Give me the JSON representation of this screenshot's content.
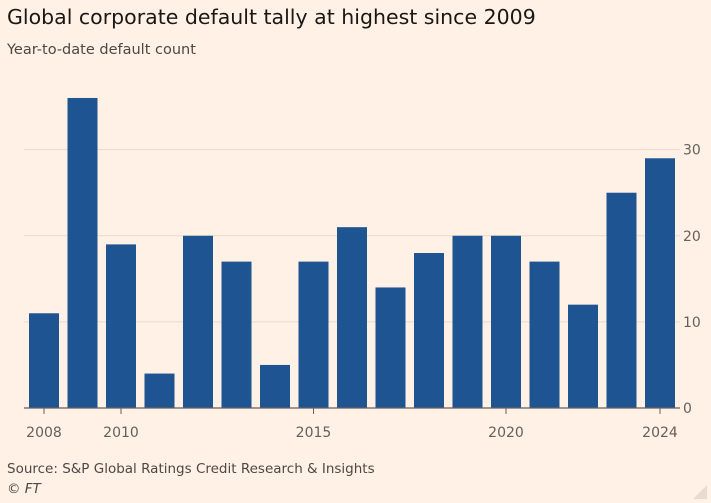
{
  "title": "Global corporate default tally at highest since 2009",
  "subtitle": "Year-to-date default count",
  "source": "Source: S&P Global Ratings Credit Research & Insights",
  "credit": "© FT",
  "colors": {
    "background": "#FFF1E5",
    "bar": "#1F5493",
    "grid": "#E6D9CE",
    "axis": "#66605C",
    "text": "#66605C"
  },
  "chart_data": {
    "type": "bar",
    "title": "Global corporate default tally at highest since 2009",
    "subtitle": "Year-to-date default count",
    "categories": [
      2008,
      2009,
      2010,
      2011,
      2012,
      2013,
      2014,
      2015,
      2016,
      2017,
      2018,
      2019,
      2020,
      2021,
      2022,
      2023,
      2024
    ],
    "values": [
      11,
      36,
      19,
      4,
      20,
      17,
      5,
      17,
      21,
      14,
      18,
      20,
      20,
      17,
      12,
      25,
      29
    ],
    "x_tick_labels": [
      "2008",
      "2010",
      "2015",
      "2020",
      "2024"
    ],
    "y_ticks": [
      0,
      10,
      20,
      30
    ],
    "ylim": [
      0,
      36
    ],
    "y_axis_side": "right",
    "grid": true
  }
}
